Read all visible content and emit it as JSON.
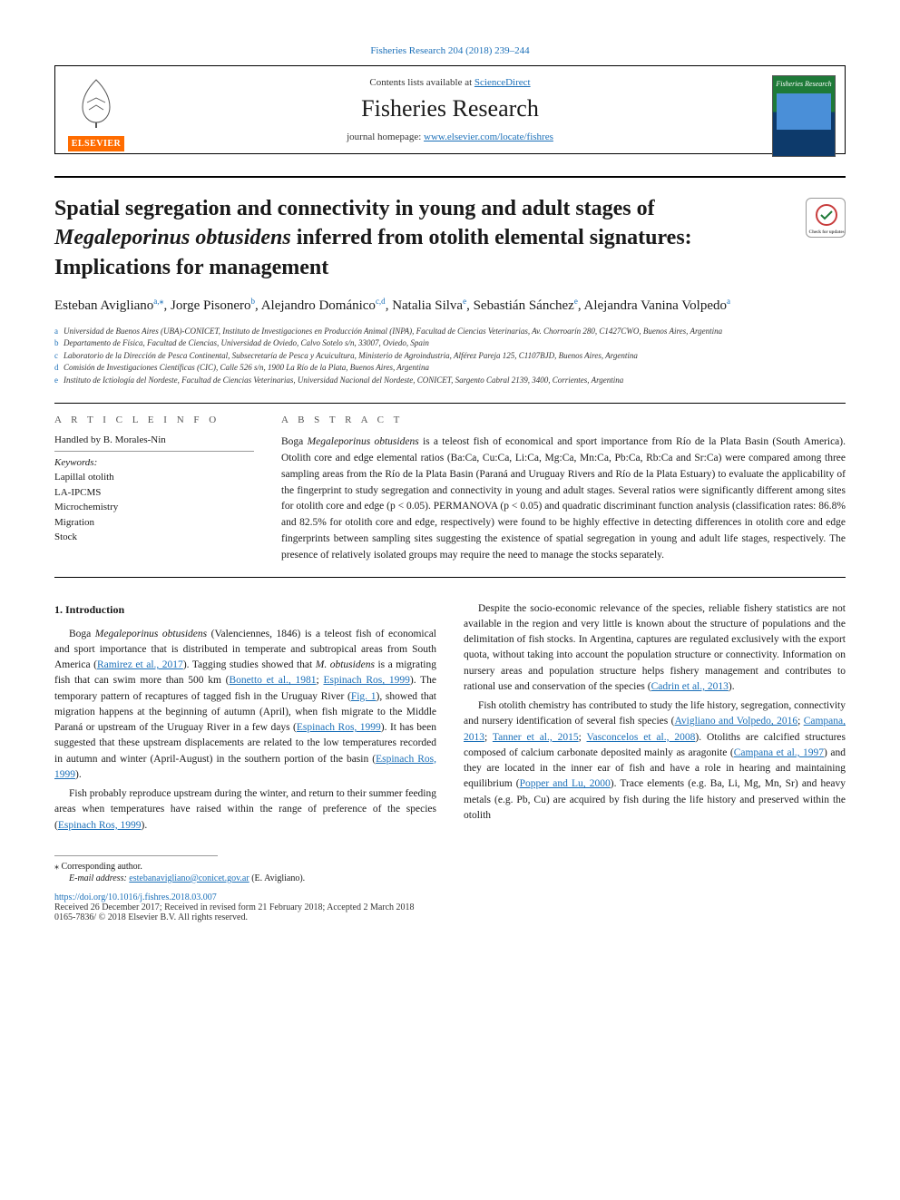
{
  "header": {
    "topLink": "Fisheries Research 204 (2018) 239–244",
    "contentsLine": "Contents lists available at ",
    "scienceDirect": "ScienceDirect",
    "journalTitle": "Fisheries Research",
    "homepagePrefix": "journal homepage: ",
    "homepageUrl": "www.elsevier.com/locate/fishres",
    "elsevierLabel": "ELSEVIER",
    "coverTitle": "Fisheries Research"
  },
  "title": {
    "part1": "Spatial segregation and connectivity in young and adult stages of ",
    "italic": "Megaleporinus obtusidens",
    "part2": " inferred from otolith elemental signatures: Implications for management"
  },
  "authors": [
    {
      "name": "Esteban Avigliano",
      "sup": "a,",
      "star": true
    },
    {
      "name": "Jorge Pisonero",
      "sup": "b"
    },
    {
      "name": "Alejandro Dománico",
      "sup": "c,d"
    },
    {
      "name": "Natalia Silva",
      "sup": "e"
    },
    {
      "name": "Sebastián Sánchez",
      "sup": "e"
    },
    {
      "name": "Alejandra Vanina Volpedo",
      "sup": "a"
    }
  ],
  "affiliations": [
    {
      "letter": "a",
      "text": "Universidad de Buenos Aires (UBA)-CONICET, Instituto de Investigaciones en Producción Animal (INPA), Facultad de Ciencias Veterinarias, Av. Chorroarín 280, C1427CWO, Buenos Aires, Argentina"
    },
    {
      "letter": "b",
      "text": "Departamento de Física, Facultad de Ciencias, Universidad de Oviedo, Calvo Sotelo s/n, 33007, Oviedo, Spain"
    },
    {
      "letter": "c",
      "text": "Laboratorio de la Dirección de Pesca Continental, Subsecretaría de Pesca y Acuicultura, Ministerio de Agroindustria, Alférez Pareja 125, C1107BJD, Buenos Aires, Argentina"
    },
    {
      "letter": "d",
      "text": "Comisión de Investigaciones Científicas (CIC), Calle 526 s/n, 1900 La Río de la Plata, Buenos Aires, Argentina"
    },
    {
      "letter": "e",
      "text": "Instituto de Ictiología del Nordeste, Facultad de Ciencias Veterinarias, Universidad Nacional del Nordeste, CONICET, Sargento Cabral 2139, 3400, Corrientes, Argentina"
    }
  ],
  "info": {
    "heading": "A R T I C L E  I N F O",
    "handled": "Handled by B. Morales-Nin",
    "kwLabel": "Keywords:",
    "keywords": [
      "Lapillal otolith",
      "LA-IPCMS",
      "Microchemistry",
      "Migration",
      "Stock"
    ]
  },
  "abstract": {
    "heading": "A B S T R A C T",
    "text": "Boga Megaleporinus obtusidens is a teleost fish of economical and sport importance from Río de la Plata Basin (South America). Otolith core and edge elemental ratios (Ba:Ca, Cu:Ca, Li:Ca, Mg:Ca, Mn:Ca, Pb:Ca, Rb:Ca and Sr:Ca) were compared among three sampling areas from the Río de la Plata Basin (Paraná and Uruguay Rivers and Río de la Plata Estuary) to evaluate the applicability of the fingerprint to study segregation and connectivity in young and adult stages. Several ratios were significantly different among sites for otolith core and edge (p < 0.05). PERMANOVA (p < 0.05) and quadratic discriminant function analysis (classification rates: 86.8% and 82.5% for otolith core and edge, respectively) were found to be highly effective in detecting differences in otolith core and edge fingerprints between sampling sites suggesting the existence of spatial segregation in young and adult life stages, respectively. The presence of relatively isolated groups may require the need to manage the stocks separately."
  },
  "body": {
    "section1": "1. Introduction",
    "col1": {
      "p1a": "Boga ",
      "p1i": "Megaleporinus obtusidens",
      "p1b": " (Valenciennes, 1846) is a teleost fish of economical and sport importance that is distributed in temperate and subtropical areas from South America (",
      "p1ref1": "Ramirez et al., 2017",
      "p1c": "). Tagging studies showed that ",
      "p1i2": "M. obtusidens",
      "p1d": " is a migrating fish that can swim more than 500 km (",
      "p1ref2": "Bonetto et al., 1981",
      "p1e": "; ",
      "p1ref3": "Espinach Ros, 1999",
      "p1f": "). The temporary pattern of recaptures of tagged fish in the Uruguay River (",
      "p1ref4": "Fig. 1",
      "p1g": "), showed that migration happens at the beginning of autumn (April), when fish migrate to the Middle Paraná or upstream of the Uruguay River in a few days (",
      "p1ref5": "Espinach Ros, 1999",
      "p1h": "). It has been suggested that these upstream displacements are related to the low temperatures recorded in autumn and winter (April-August) in the southern portion of the basin (",
      "p1ref6": "Espinach Ros, 1999",
      "p1j": ").",
      "p2a": "Fish probably reproduce upstream during the winter, and return to their summer feeding areas when temperatures have raised within the range of preference of the species (",
      "p2ref1": "Espinach Ros, 1999",
      "p2b": ")."
    },
    "col2": {
      "p1a": "Despite the socio-economic relevance of the species, reliable fishery statistics are not available in the region and very little is known about the structure of populations and the delimitation of fish stocks. In Argentina, captures are regulated exclusively with the export quota, without taking into account the population structure or connectivity. Information on nursery areas and population structure helps fishery management and contributes to rational use and conservation of the species (",
      "p1ref1": "Cadrin et al., 2013",
      "p1b": ").",
      "p2a": "Fish otolith chemistry has contributed to study the life history, segregation, connectivity and nursery identification of several fish species (",
      "p2ref1": "Avigliano and Volpedo, 2016",
      "p2b": "; ",
      "p2ref2": "Campana, 2013",
      "p2c": "; ",
      "p2ref3": "Tanner et al., 2015",
      "p2d": "; ",
      "p2ref4": "Vasconcelos et al., 2008",
      "p2e": "). Otoliths are calcified structures composed of calcium carbonate deposited mainly as aragonite (",
      "p2ref5": "Campana et al., 1997",
      "p2f": ") and they are located in the inner ear of fish and have a role in hearing and maintaining equilibrium (",
      "p2ref6": "Popper and Lu, 2000",
      "p2g": "). Trace elements (e.g. Ba, Li, Mg, Mn, Sr) and heavy metals (e.g. Pb, Cu) are acquired by fish during the life history and preserved within the otolith"
    }
  },
  "footer": {
    "correspLabel": "⁎ Corresponding author.",
    "emailLabel": "E-mail address: ",
    "email": "estebanavigliano@conicet.gov.ar",
    "emailAuthor": " (E. Avigliano).",
    "doi": "https://doi.org/10.1016/j.fishres.2018.03.007",
    "received": "Received 26 December 2017; Received in revised form 21 February 2018; Accepted 2 March 2018",
    "copyright": "0165-7836/ © 2018 Elsevier B.V. All rights reserved."
  },
  "colors": {
    "link": "#1a6fb8",
    "elsevierOrange": "#ff6c00"
  }
}
